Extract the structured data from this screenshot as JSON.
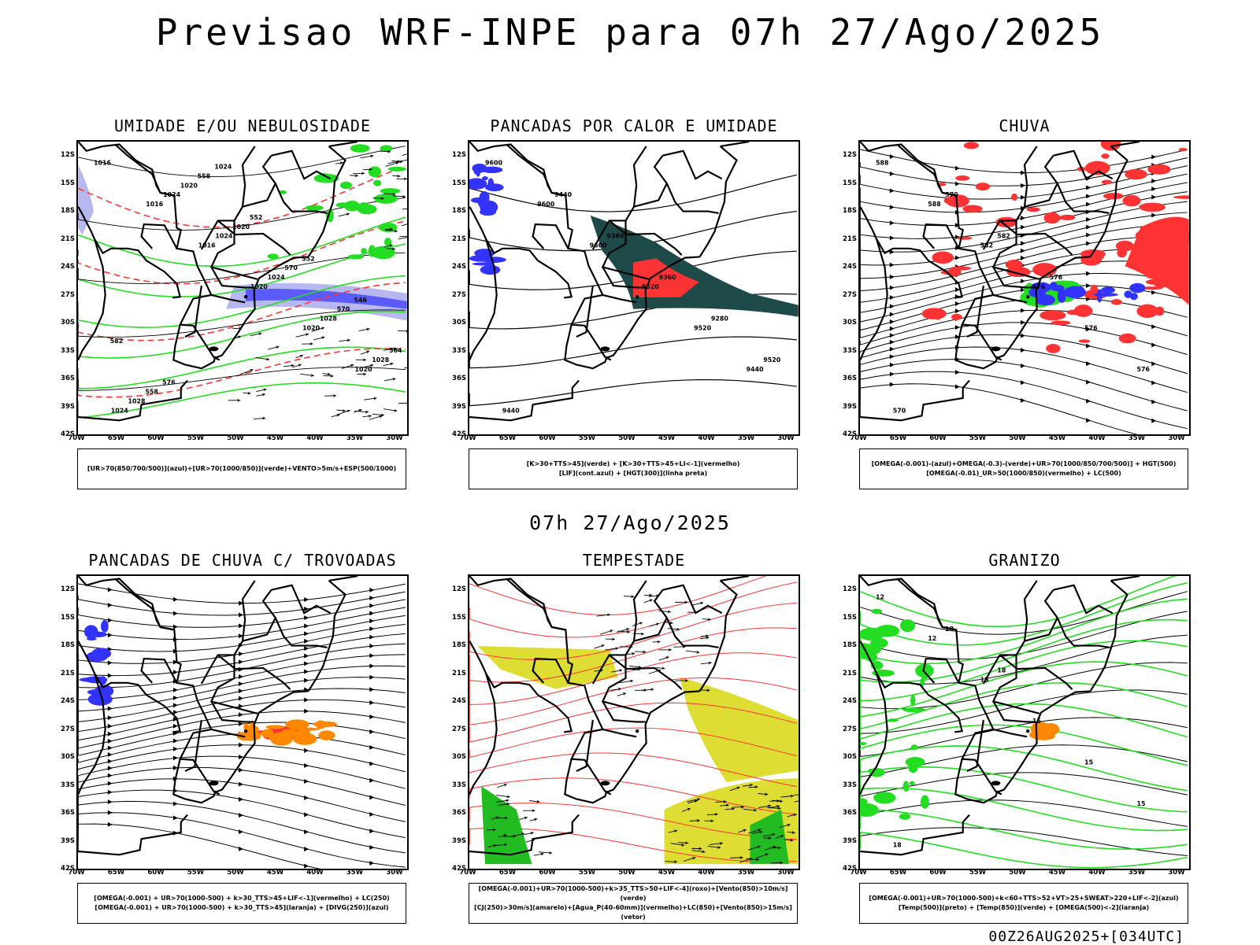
{
  "title": "Previsao WRF-INPE  para 07h 27/Ago/2025",
  "mid_date": "07h 27/Ago/2025",
  "footer": "00Z26AUG2025+[034UTC]",
  "axes": {
    "lat_labels": [
      "12S",
      "15S",
      "18S",
      "21S",
      "24S",
      "27S",
      "30S",
      "33S",
      "36S",
      "39S",
      "42S"
    ],
    "lon_labels": [
      "70W",
      "65W",
      "60W",
      "55W",
      "50W",
      "45W",
      "40W",
      "35W",
      "30W"
    ]
  },
  "colors": {
    "blue": "#3333ff",
    "green": "#22dd22",
    "red": "#ff3333",
    "orange": "#ff8800",
    "yellow": "#dddd33",
    "darkgreen": "#1e4a4a",
    "lightblue": "#b8b8f0"
  },
  "panels": [
    {
      "title": "UMIDADE E/OU NEBULOSIDADE",
      "legend": [
        "[UR>70(850/700/500)](azul)+[UR>70(1000/850)](verde)+VENTO>5m/s+ESP(500/1000)"
      ],
      "contour_labels": [
        "1016",
        "1016",
        "1016",
        "1020",
        "1020",
        "1020",
        "1024",
        "1024",
        "1024",
        "1024",
        "1028",
        "1028",
        "1028",
        "1020",
        "1020",
        "570",
        "570",
        "564",
        "558",
        "558",
        "552",
        "552",
        "546",
        "582",
        "576",
        "1024"
      ]
    },
    {
      "title": "PANCADAS POR CALOR E UMIDADE",
      "legend": [
        "[K>30+TTS>45](verde) + [K>30+TTS>45+LI<-1](vermelho)",
        "[LIF](cont.azul) + [HGT(300)](linha preta)"
      ],
      "contour_labels": [
        "9600",
        "9600",
        "9600",
        "9520",
        "9520",
        "9440",
        "9440",
        "9440",
        "9360",
        "9360",
        "9280",
        "9520"
      ]
    },
    {
      "title": "CHUVA",
      "legend": [
        "[OMEGA(-0.001)-(azul)+OMEGA(-0.3)-(verde)+UR>70(1000/850/700/500)] + HGT(500)",
        "[OMEGA(-0.01)_UR>50(1000/850)(vermelho) + LC(500)"
      ],
      "contour_labels": [
        "588",
        "588",
        "582",
        "576",
        "576",
        "576",
        "570",
        "570",
        "582",
        "576"
      ]
    },
    {
      "title": "PANCADAS DE CHUVA C/ TROVOADAS",
      "legend": [
        "[OMEGA(-0.001) + UR>70(1000-500) + k>30_TTS>45+LIF<-1](vermelho) + LC(250)",
        "[OMEGA(-0.001) + UR>70(1000-500) + k>30_TTS>45](laranja) + [DIVG(250)](azul)"
      ],
      "contour_labels": []
    },
    {
      "title": "TEMPESTADE",
      "legend": [
        "[OMEGA(-0.001)+UR>70(1000-500)+k>35_TTS>50+LIF<-4](roxo)+[Vento(850)>10m/s](verde)",
        "[CJ(250)>30m/s](amarelo)+[Agua_P(40-60mm)](vermelho)+LC(850)+[Vento(850)>15m/s](vetor)"
      ],
      "contour_labels": []
    },
    {
      "title": "GRANIZO",
      "legend": [
        "[OMEGA(-0.001)+UR>70(1000-500)+k<60+TTS>52+VT>25+SWEAT>220+LIF<-2](azul)",
        "[Temp(500)](preto) + [Temp(850)](verde) + [OMEGA(500)<-2](laranja)"
      ],
      "contour_labels": [
        "12",
        "12",
        "15",
        "15",
        "15",
        "15",
        "18",
        "18",
        "18"
      ]
    }
  ]
}
